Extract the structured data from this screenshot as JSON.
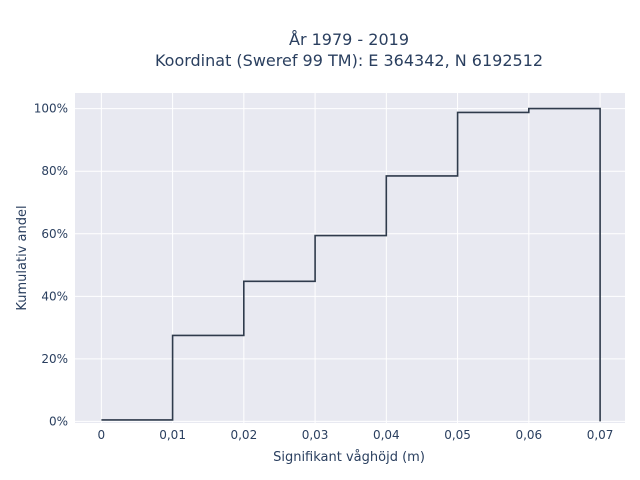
{
  "chart_data": {
    "type": "line",
    "line_shape": "step",
    "title_lines": [
      "År 1979 - 2019",
      "Koordinat (Sweref 99 TM): E 364342, N 6192512"
    ],
    "xlabel": "Signifikant våghöjd (m)",
    "ylabel": "Kumulativ andel",
    "xlim": [
      -0.0037,
      0.0735
    ],
    "ylim": [
      -0.005,
      1.05
    ],
    "x_ticks": [
      0,
      0.01,
      0.02,
      0.03,
      0.04,
      0.05,
      0.06,
      0.07
    ],
    "x_tick_labels": [
      "0",
      "0,01",
      "0,02",
      "0,03",
      "0,04",
      "0,05",
      "0,06",
      "0,07"
    ],
    "y_ticks": [
      0,
      0.2,
      0.4,
      0.6,
      0.8,
      1.0
    ],
    "y_tick_labels": [
      "0%",
      "20%",
      "40%",
      "60%",
      "80%",
      "100%"
    ],
    "grid": true,
    "series": [
      {
        "color": "#2f3b4c",
        "points": [
          [
            0,
            0.005
          ],
          [
            0.01,
            0.005
          ],
          [
            0.01,
            0.275
          ],
          [
            0.02,
            0.275
          ],
          [
            0.02,
            0.448
          ],
          [
            0.03,
            0.448
          ],
          [
            0.03,
            0.594
          ],
          [
            0.04,
            0.594
          ],
          [
            0.04,
            0.785
          ],
          [
            0.05,
            0.785
          ],
          [
            0.05,
            0.988
          ],
          [
            0.06,
            0.988
          ],
          [
            0.06,
            1.0
          ],
          [
            0.07,
            1.0
          ],
          [
            0.07,
            0.0
          ]
        ]
      }
    ]
  }
}
